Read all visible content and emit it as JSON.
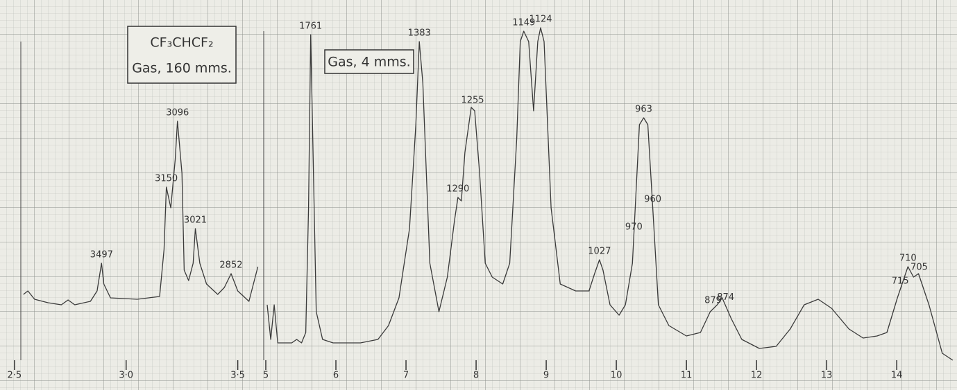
{
  "chart_data": [
    {
      "type": "line",
      "title": "CF₃CHCF₂",
      "subtitle": "Gas, 160 mms.",
      "xlim": [
        2.46,
        3.61
      ],
      "ylim": [
        0,
        100
      ],
      "xticks": [
        {
          "value": 2.5,
          "label": "2·5"
        },
        {
          "value": 3.0,
          "label": "3·0"
        },
        {
          "value": 3.5,
          "label": "3·5"
        }
      ],
      "color": "#3a3a3a",
      "x": [
        2.54,
        2.56,
        2.59,
        2.65,
        2.71,
        2.74,
        2.77,
        2.84,
        2.87,
        2.89,
        2.9,
        2.93,
        3.05,
        3.15,
        3.17,
        3.18,
        3.2,
        3.22,
        3.23,
        3.25,
        3.26,
        3.28,
        3.3,
        3.31,
        3.33,
        3.36,
        3.41,
        3.44,
        3.47,
        3.5,
        3.55,
        3.59
      ],
      "values": [
        19,
        20,
        17.6,
        16.6,
        16,
        17.4,
        16,
        17,
        20,
        28,
        22,
        18,
        17.6,
        18.4,
        32,
        50,
        44,
        58,
        69,
        54,
        26,
        23,
        28,
        38,
        28,
        22,
        19,
        21,
        25,
        20,
        17,
        27
      ],
      "annotations": [
        {
          "label": "3497",
          "x": 2.89
        },
        {
          "label": "3150",
          "x": 3.18
        },
        {
          "label": "3096",
          "x": 3.23
        },
        {
          "label": "3021",
          "x": 3.31
        },
        {
          "label": "2852",
          "x": 3.47
        }
      ]
    },
    {
      "type": "line",
      "subtitle": "Gas, 4 mms.",
      "xlim": [
        4.99,
        14.85
      ],
      "ylim": [
        0,
        100
      ],
      "xticks": [
        5,
        6,
        7,
        8,
        9,
        10,
        11,
        12,
        13,
        14
      ],
      "color": "#3a3a3a",
      "x": [
        5.02,
        5.07,
        5.12,
        5.17,
        5.37,
        5.44,
        5.51,
        5.57,
        5.61,
        5.64,
        5.67,
        5.72,
        5.81,
        5.96,
        6.16,
        6.35,
        6.6,
        6.75,
        6.9,
        7.05,
        7.14,
        7.19,
        7.24,
        7.34,
        7.47,
        7.59,
        7.69,
        7.74,
        7.79,
        7.84,
        7.93,
        7.98,
        8.05,
        8.13,
        8.23,
        8.38,
        8.48,
        8.58,
        8.63,
        8.68,
        8.75,
        8.82,
        8.88,
        8.92,
        8.97,
        9.07,
        9.2,
        9.42,
        9.61,
        9.69,
        9.76,
        9.81,
        9.91,
        10.04,
        10.13,
        10.23,
        10.33,
        10.39,
        10.45,
        10.52,
        10.6,
        10.75,
        11.0,
        11.2,
        11.34,
        11.44,
        11.51,
        11.64,
        11.79,
        12.04,
        12.28,
        12.48,
        12.68,
        12.88,
        13.07,
        13.32,
        13.52,
        13.72,
        13.86,
        14.01,
        14.11,
        14.16,
        14.24,
        14.31,
        14.46,
        14.65,
        14.8
      ],
      "values": [
        16,
        6,
        16,
        5,
        5,
        6,
        5,
        8,
        44,
        94,
        64,
        14,
        6,
        5,
        5,
        5,
        6,
        10,
        18,
        38,
        68,
        92,
        80,
        28,
        14,
        24,
        40,
        47,
        46,
        60,
        73,
        72,
        54,
        28,
        24,
        22,
        28,
        64,
        92,
        95,
        92,
        72,
        92,
        96,
        92,
        44,
        22,
        20,
        20,
        25,
        29,
        26,
        16,
        13,
        16,
        28,
        68,
        70,
        68,
        44,
        16,
        10,
        7,
        8,
        14,
        16,
        18,
        12,
        6,
        3.4,
        4,
        9,
        16,
        17.6,
        15,
        9,
        6.4,
        7,
        8,
        18,
        24,
        27,
        24,
        25,
        16,
        2,
        0
      ],
      "annotations": [
        {
          "label": "1761",
          "x": 5.64
        },
        {
          "label": "1383",
          "x": 7.19
        },
        {
          "label": "1290",
          "x": 7.74
        },
        {
          "label": "1255",
          "x": 7.95
        },
        {
          "label": "1149",
          "x": 8.68
        },
        {
          "label": "1124",
          "x": 8.92
        },
        {
          "label": "1027",
          "x": 9.76
        },
        {
          "label": "970",
          "x": 10.25
        },
        {
          "label": "963",
          "x": 10.39
        },
        {
          "label": "960",
          "x": 10.52
        },
        {
          "label": "879",
          "x": 11.38
        },
        {
          "label": "874",
          "x": 11.56
        },
        {
          "label": "715",
          "x": 14.05
        },
        {
          "label": "710",
          "x": 14.16
        },
        {
          "label": "705",
          "x": 14.32
        }
      ]
    }
  ]
}
